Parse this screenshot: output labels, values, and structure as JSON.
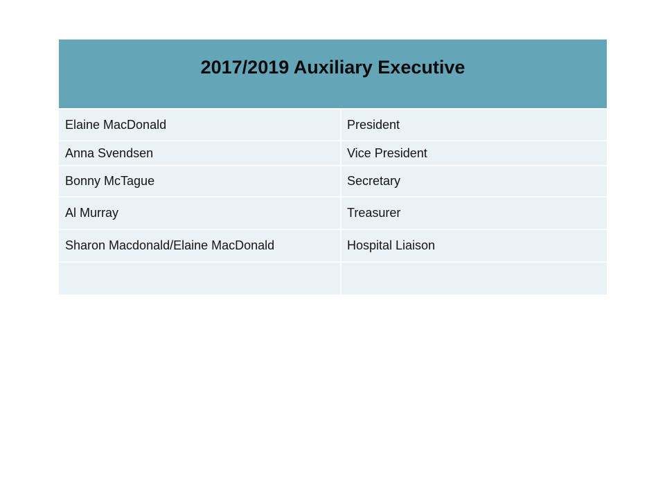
{
  "slide": {
    "background_color": "#ffffff"
  },
  "table": {
    "title": "2017/2019 Auxiliary Executive",
    "header_bg_color": "#64a5b8",
    "row_bg_color": "#ebf2f5",
    "separator_color": "#fafdfe",
    "title_color": "#0a0a0a",
    "text_color": "#141414",
    "columns": [
      "name",
      "role"
    ],
    "rows": [
      {
        "name": "Elaine MacDonald",
        "role": "President"
      },
      {
        "name": "Anna Svendsen",
        "role": "Vice President"
      },
      {
        "name": "Bonny McTague",
        "role": "Secretary"
      },
      {
        "name": "Al Murray",
        "role": "Treasurer"
      },
      {
        "name": "Sharon Macdonald/Elaine MacDonald",
        "role": "Hospital Liaison"
      },
      {
        "name": "",
        "role": ""
      }
    ]
  }
}
